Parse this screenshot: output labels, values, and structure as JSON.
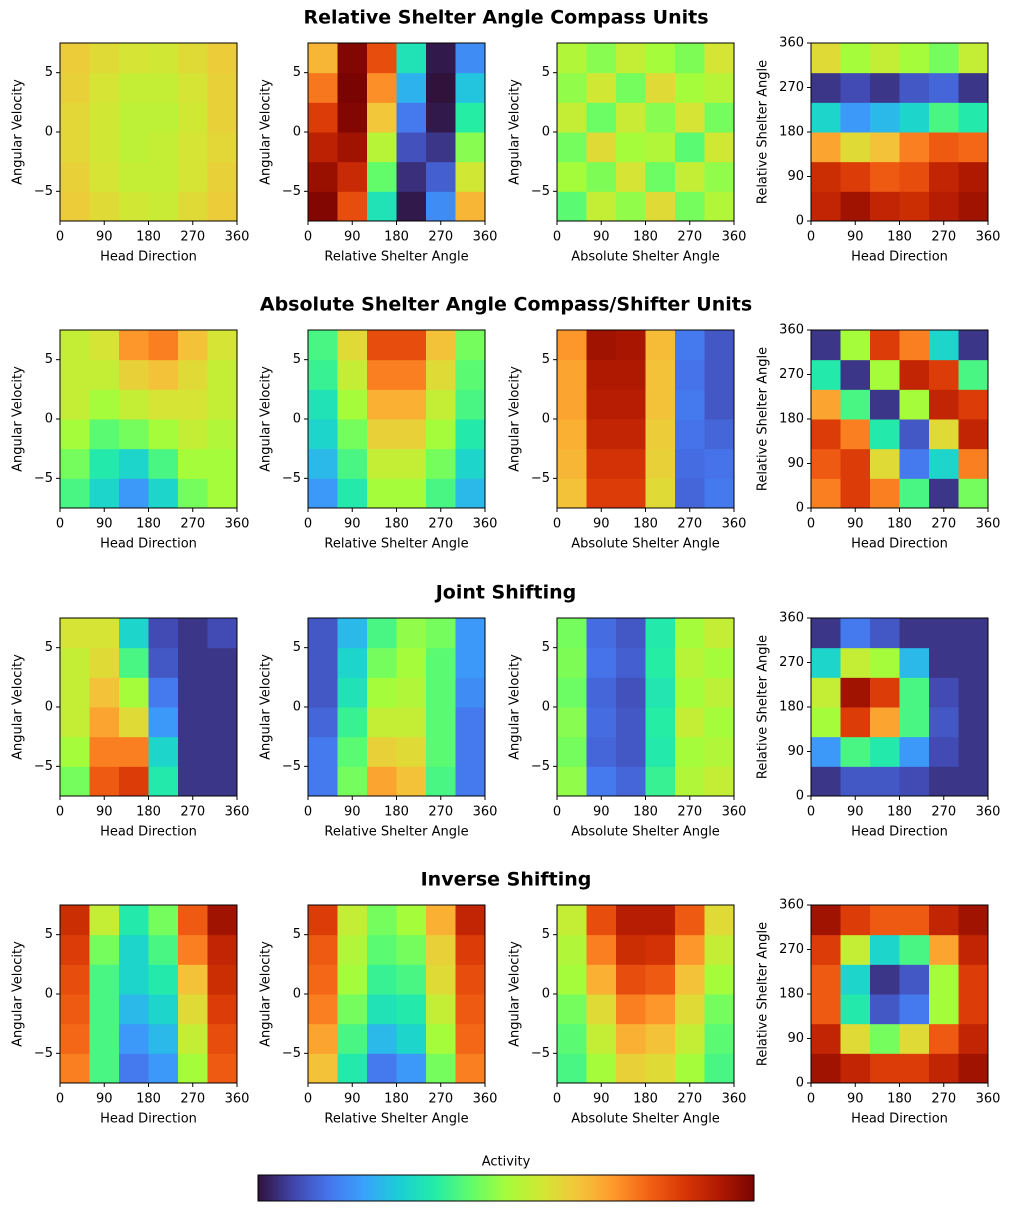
{
  "row_titles": [
    "Relative Shelter Angle Compass Units",
    "Absolute Shelter Angle Compass/Shifter Units",
    "Joint Shifting",
    "Inverse Shifting"
  ],
  "colorbar": {
    "label": "Activity",
    "colors": [
      "#30123b",
      "#4145ab",
      "#4675ed",
      "#39a2fc",
      "#1bcfd4",
      "#24eca6",
      "#61fc6c",
      "#a4fc3b",
      "#d1e834",
      "#f3c63a",
      "#fe9b2d",
      "#f36315",
      "#d93806",
      "#b11901",
      "#7a0402"
    ]
  },
  "chart_data": [
    {
      "type": "heatmap",
      "xlabel": "Head Direction",
      "ylabel": "Angular Velocity",
      "xlim": [
        0,
        360
      ],
      "xticks": [
        0,
        90,
        180,
        270,
        360
      ],
      "ylim": [
        -7.5,
        7.5
      ],
      "yticks": [
        {
          "value": -5,
          "label": "−5"
        },
        0,
        5
      ],
      "values": [
        [
          0.63,
          0.6,
          0.57,
          0.56,
          0.6,
          0.63
        ],
        [
          0.62,
          0.58,
          0.55,
          0.55,
          0.58,
          0.62
        ],
        [
          0.61,
          0.57,
          0.54,
          0.55,
          0.58,
          0.61
        ],
        [
          0.61,
          0.57,
          0.54,
          0.54,
          0.57,
          0.62
        ],
        [
          0.62,
          0.58,
          0.55,
          0.55,
          0.58,
          0.62
        ],
        [
          0.63,
          0.6,
          0.58,
          0.57,
          0.6,
          0.63
        ]
      ]
    },
    {
      "type": "heatmap",
      "xlabel": "Relative Shelter Angle",
      "ylabel": "Angular Velocity",
      "xlim": [
        0,
        360
      ],
      "xticks": [
        0,
        90,
        180,
        270,
        360
      ],
      "ylim": [
        -7.5,
        7.5
      ],
      "yticks": [
        {
          "value": -5,
          "label": "−5"
        },
        0,
        5
      ],
      "values": [
        [
          0.99,
          0.82,
          0.33,
          0.01,
          0.18,
          0.67
        ],
        [
          0.96,
          0.89,
          0.43,
          0.04,
          0.11,
          0.57
        ],
        [
          0.91,
          0.95,
          0.53,
          0.09,
          0.05,
          0.47
        ],
        [
          0.85,
          0.99,
          0.64,
          0.15,
          0.01,
          0.36
        ],
        [
          0.76,
          1.0,
          0.73,
          0.24,
          0.0,
          0.27
        ],
        [
          0.67,
          0.99,
          0.82,
          0.33,
          0.01,
          0.18
        ]
      ]
    },
    {
      "type": "heatmap",
      "xlabel": "Absolute Shelter Angle",
      "ylabel": "Angular Velocity",
      "xlim": [
        0,
        360
      ],
      "xticks": [
        0,
        90,
        180,
        270,
        360
      ],
      "ylim": [
        -7.5,
        7.5
      ],
      "yticks": [
        {
          "value": -5,
          "label": "−5"
        },
        0,
        5
      ],
      "values": [
        [
          0.42,
          0.55,
          0.48,
          0.6,
          0.45,
          0.52
        ],
        [
          0.5,
          0.46,
          0.58,
          0.44,
          0.55,
          0.48
        ],
        [
          0.45,
          0.6,
          0.5,
          0.52,
          0.42,
          0.57
        ],
        [
          0.55,
          0.44,
          0.56,
          0.47,
          0.58,
          0.45
        ],
        [
          0.48,
          0.57,
          0.45,
          0.6,
          0.5,
          0.53
        ],
        [
          0.52,
          0.47,
          0.55,
          0.5,
          0.46,
          0.58
        ]
      ]
    },
    {
      "type": "heatmap",
      "xlabel": "Head Direction",
      "ylabel": "Relative Shelter Angle",
      "xlim": [
        0,
        360
      ],
      "xticks": [
        0,
        90,
        180,
        270,
        360
      ],
      "ylim": [
        0,
        360
      ],
      "yticks": [
        0,
        90,
        180,
        270,
        360
      ],
      "values": [
        [
          0.9,
          0.95,
          0.9,
          0.88,
          0.92,
          0.95
        ],
        [
          0.88,
          0.85,
          0.8,
          0.82,
          0.9,
          0.93
        ],
        [
          0.7,
          0.6,
          0.65,
          0.75,
          0.8,
          0.78
        ],
        [
          0.3,
          0.2,
          0.25,
          0.3,
          0.4,
          0.35
        ],
        [
          0.05,
          0.08,
          0.05,
          0.1,
          0.12,
          0.05
        ],
        [
          0.6,
          0.5,
          0.55,
          0.5,
          0.45,
          0.55
        ]
      ]
    },
    {
      "type": "heatmap",
      "xlabel": "Head Direction",
      "ylabel": "Angular Velocity",
      "xlim": [
        0,
        360
      ],
      "xticks": [
        0,
        90,
        180,
        270,
        360
      ],
      "ylim": [
        -7.5,
        7.5
      ],
      "yticks": [
        {
          "value": -5,
          "label": "−5"
        },
        0,
        5
      ],
      "values": [
        [
          0.4,
          0.3,
          0.2,
          0.3,
          0.45,
          0.5
        ],
        [
          0.45,
          0.35,
          0.3,
          0.4,
          0.5,
          0.5
        ],
        [
          0.5,
          0.42,
          0.45,
          0.5,
          0.55,
          0.52
        ],
        [
          0.55,
          0.5,
          0.55,
          0.58,
          0.58,
          0.55
        ],
        [
          0.55,
          0.55,
          0.62,
          0.65,
          0.6,
          0.55
        ],
        [
          0.55,
          0.58,
          0.72,
          0.75,
          0.65,
          0.58
        ]
      ]
    },
    {
      "type": "heatmap",
      "xlabel": "Relative Shelter Angle",
      "ylabel": "Angular Velocity",
      "xlim": [
        0,
        360
      ],
      "xticks": [
        0,
        90,
        180,
        270,
        360
      ],
      "ylim": [
        -7.5,
        7.5
      ],
      "yticks": [
        {
          "value": -5,
          "label": "−5"
        },
        0,
        5
      ],
      "values": [
        [
          0.2,
          0.35,
          0.5,
          0.5,
          0.4,
          0.25
        ],
        [
          0.25,
          0.4,
          0.55,
          0.55,
          0.45,
          0.3
        ],
        [
          0.3,
          0.45,
          0.62,
          0.62,
          0.5,
          0.35
        ],
        [
          0.33,
          0.5,
          0.68,
          0.68,
          0.55,
          0.4
        ],
        [
          0.38,
          0.55,
          0.75,
          0.75,
          0.6,
          0.42
        ],
        [
          0.4,
          0.6,
          0.82,
          0.82,
          0.65,
          0.45
        ]
      ]
    },
    {
      "type": "heatmap",
      "xlabel": "Absolute Shelter Angle",
      "ylabel": "Angular Velocity",
      "xlim": [
        0,
        360
      ],
      "xticks": [
        0,
        90,
        180,
        270,
        360
      ],
      "ylim": [
        -7.5,
        7.5
      ],
      "yticks": [
        {
          "value": -5,
          "label": "−5"
        },
        0,
        5
      ],
      "values": [
        [
          0.65,
          0.85,
          0.85,
          0.6,
          0.12,
          0.15
        ],
        [
          0.67,
          0.87,
          0.87,
          0.62,
          0.13,
          0.14
        ],
        [
          0.68,
          0.9,
          0.9,
          0.63,
          0.14,
          0.12
        ],
        [
          0.7,
          0.92,
          0.92,
          0.65,
          0.15,
          0.1
        ],
        [
          0.7,
          0.93,
          0.93,
          0.65,
          0.14,
          0.1
        ],
        [
          0.72,
          0.95,
          0.94,
          0.66,
          0.15,
          0.1
        ]
      ]
    },
    {
      "type": "heatmap",
      "xlabel": "Head Direction",
      "ylabel": "Relative Shelter Angle",
      "xlim": [
        0,
        360
      ],
      "xticks": [
        0,
        90,
        180,
        270,
        360
      ],
      "ylim": [
        0,
        360
      ],
      "yticks": [
        0,
        90,
        180,
        270,
        360
      ],
      "values": [
        [
          0.75,
          0.85,
          0.75,
          0.4,
          0.05,
          0.45
        ],
        [
          0.8,
          0.85,
          0.6,
          0.15,
          0.3,
          0.75
        ],
        [
          0.85,
          0.75,
          0.35,
          0.1,
          0.6,
          0.9
        ],
        [
          0.7,
          0.4,
          0.05,
          0.5,
          0.9,
          0.85
        ],
        [
          0.35,
          0.05,
          0.5,
          0.9,
          0.85,
          0.4
        ],
        [
          0.05,
          0.5,
          0.85,
          0.75,
          0.3,
          0.05
        ]
      ]
    },
    {
      "type": "heatmap",
      "xlabel": "Head Direction",
      "ylabel": "Angular Velocity",
      "xlim": [
        0,
        360
      ],
      "xticks": [
        0,
        90,
        180,
        270,
        360
      ],
      "ylim": [
        -7.5,
        7.5
      ],
      "yticks": [
        {
          "value": -5,
          "label": "−5"
        },
        0,
        5
      ],
      "values": [
        [
          0.45,
          0.8,
          0.85,
          0.35,
          0.05,
          0.05
        ],
        [
          0.5,
          0.75,
          0.75,
          0.3,
          0.05,
          0.05
        ],
        [
          0.55,
          0.7,
          0.6,
          0.2,
          0.05,
          0.05
        ],
        [
          0.55,
          0.65,
          0.5,
          0.15,
          0.05,
          0.05
        ],
        [
          0.55,
          0.6,
          0.4,
          0.1,
          0.05,
          0.05
        ],
        [
          0.58,
          0.58,
          0.3,
          0.08,
          0.05,
          0.08
        ]
      ]
    },
    {
      "type": "heatmap",
      "xlabel": "Relative Shelter Angle",
      "ylabel": "Angular Velocity",
      "xlim": [
        0,
        360
      ],
      "xticks": [
        0,
        90,
        180,
        270,
        360
      ],
      "ylim": [
        -7.5,
        7.5
      ],
      "yticks": [
        {
          "value": -5,
          "label": "−5"
        },
        0,
        5
      ],
      "values": [
        [
          0.15,
          0.45,
          0.7,
          0.65,
          0.4,
          0.15
        ],
        [
          0.15,
          0.42,
          0.62,
          0.6,
          0.42,
          0.15
        ],
        [
          0.12,
          0.38,
          0.55,
          0.55,
          0.42,
          0.15
        ],
        [
          0.1,
          0.33,
          0.5,
          0.52,
          0.42,
          0.18
        ],
        [
          0.1,
          0.3,
          0.45,
          0.5,
          0.42,
          0.2
        ],
        [
          0.1,
          0.25,
          0.4,
          0.48,
          0.45,
          0.2
        ]
      ]
    },
    {
      "type": "heatmap",
      "xlabel": "Absolute Shelter Angle",
      "ylabel": "Angular Velocity",
      "xlim": [
        0,
        360
      ],
      "xticks": [
        0,
        90,
        180,
        270,
        360
      ],
      "ylim": [
        -7.5,
        7.5
      ],
      "yticks": [
        {
          "value": -5,
          "label": "−5"
        },
        0,
        5
      ],
      "values": [
        [
          0.48,
          0.15,
          0.12,
          0.38,
          0.52,
          0.55
        ],
        [
          0.45,
          0.12,
          0.1,
          0.35,
          0.5,
          0.52
        ],
        [
          0.47,
          0.13,
          0.1,
          0.36,
          0.55,
          0.5
        ],
        [
          0.44,
          0.12,
          0.09,
          0.34,
          0.5,
          0.54
        ],
        [
          0.46,
          0.14,
          0.11,
          0.36,
          0.53,
          0.5
        ],
        [
          0.45,
          0.13,
          0.1,
          0.35,
          0.5,
          0.55
        ]
      ]
    },
    {
      "type": "heatmap",
      "xlabel": "Head Direction",
      "ylabel": "Relative Shelter Angle",
      "xlim": [
        0,
        360
      ],
      "xticks": [
        0,
        90,
        180,
        270,
        360
      ],
      "ylim": [
        0,
        360
      ],
      "yticks": [
        0,
        90,
        180,
        270,
        360
      ],
      "values": [
        [
          0.05,
          0.1,
          0.1,
          0.08,
          0.05,
          0.05
        ],
        [
          0.2,
          0.4,
          0.35,
          0.2,
          0.08,
          0.05
        ],
        [
          0.5,
          0.85,
          0.7,
          0.4,
          0.1,
          0.05
        ],
        [
          0.55,
          0.95,
          0.85,
          0.4,
          0.08,
          0.05
        ],
        [
          0.3,
          0.55,
          0.5,
          0.25,
          0.05,
          0.05
        ],
        [
          0.05,
          0.15,
          0.1,
          0.05,
          0.05,
          0.05
        ]
      ]
    },
    {
      "type": "heatmap",
      "xlabel": "Head Direction",
      "ylabel": "Angular Velocity",
      "xlim": [
        0,
        360
      ],
      "xticks": [
        0,
        90,
        180,
        270,
        360
      ],
      "ylim": [
        -7.5,
        7.5
      ],
      "yticks": [
        {
          "value": -5,
          "label": "−5"
        },
        0,
        5
      ],
      "values": [
        [
          0.75,
          0.4,
          0.15,
          0.2,
          0.5,
          0.8
        ],
        [
          0.78,
          0.4,
          0.2,
          0.25,
          0.55,
          0.82
        ],
        [
          0.8,
          0.4,
          0.25,
          0.3,
          0.6,
          0.85
        ],
        [
          0.82,
          0.4,
          0.3,
          0.35,
          0.65,
          0.88
        ],
        [
          0.85,
          0.45,
          0.3,
          0.4,
          0.75,
          0.9
        ],
        [
          0.88,
          0.55,
          0.35,
          0.45,
          0.8,
          0.95
        ]
      ]
    },
    {
      "type": "heatmap",
      "xlabel": "Relative Shelter Angle",
      "ylabel": "Angular Velocity",
      "xlim": [
        0,
        360
      ],
      "xticks": [
        0,
        90,
        180,
        270,
        360
      ],
      "ylim": [
        -7.5,
        7.5
      ],
      "yticks": [
        {
          "value": -5,
          "label": "−5"
        },
        0,
        5
      ],
      "values": [
        [
          0.65,
          0.35,
          0.15,
          0.2,
          0.45,
          0.75
        ],
        [
          0.7,
          0.4,
          0.25,
          0.3,
          0.5,
          0.78
        ],
        [
          0.75,
          0.45,
          0.33,
          0.35,
          0.55,
          0.8
        ],
        [
          0.78,
          0.5,
          0.38,
          0.4,
          0.6,
          0.82
        ],
        [
          0.8,
          0.52,
          0.42,
          0.45,
          0.62,
          0.85
        ],
        [
          0.85,
          0.55,
          0.45,
          0.5,
          0.68,
          0.9
        ]
      ]
    },
    {
      "type": "heatmap",
      "xlabel": "Absolute Shelter Angle",
      "ylabel": "Angular Velocity",
      "xlim": [
        0,
        360
      ],
      "xticks": [
        0,
        90,
        180,
        270,
        360
      ],
      "ylim": [
        -7.5,
        7.5
      ],
      "yticks": [
        {
          "value": -5,
          "label": "−5"
        },
        0,
        5
      ],
      "values": [
        [
          0.4,
          0.5,
          0.62,
          0.6,
          0.5,
          0.4
        ],
        [
          0.42,
          0.55,
          0.68,
          0.65,
          0.55,
          0.42
        ],
        [
          0.45,
          0.6,
          0.75,
          0.72,
          0.6,
          0.45
        ],
        [
          0.5,
          0.68,
          0.82,
          0.8,
          0.65,
          0.5
        ],
        [
          0.52,
          0.75,
          0.88,
          0.87,
          0.72,
          0.55
        ],
        [
          0.55,
          0.82,
          0.92,
          0.92,
          0.8,
          0.6
        ]
      ]
    },
    {
      "type": "heatmap",
      "xlabel": "Head Direction",
      "ylabel": "Relative Shelter Angle",
      "xlim": [
        0,
        360
      ],
      "xticks": [
        0,
        90,
        180,
        270,
        360
      ],
      "ylim": [
        0,
        360
      ],
      "yticks": [
        0,
        90,
        180,
        270,
        360
      ],
      "values": [
        [
          0.95,
          0.9,
          0.85,
          0.85,
          0.9,
          0.95
        ],
        [
          0.9,
          0.6,
          0.45,
          0.6,
          0.8,
          0.9
        ],
        [
          0.8,
          0.35,
          0.1,
          0.15,
          0.5,
          0.85
        ],
        [
          0.8,
          0.3,
          0.05,
          0.1,
          0.5,
          0.85
        ],
        [
          0.85,
          0.55,
          0.3,
          0.4,
          0.7,
          0.9
        ],
        [
          0.95,
          0.85,
          0.8,
          0.8,
          0.9,
          0.95
        ]
      ]
    }
  ]
}
